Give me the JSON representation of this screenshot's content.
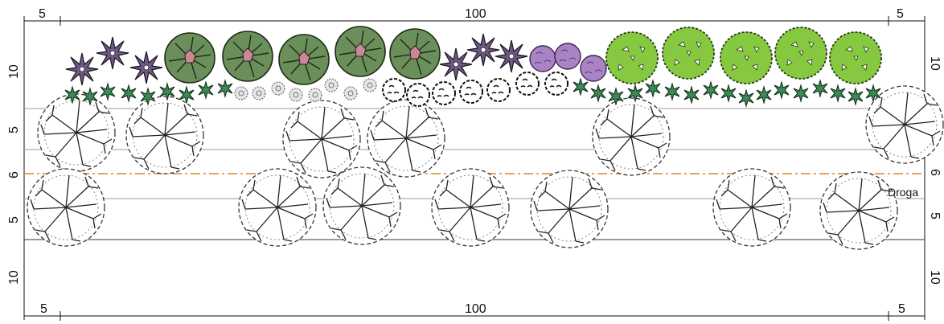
{
  "dimensions": {
    "top": {
      "left": "5",
      "center": "100",
      "right": "5"
    },
    "bottom": {
      "left": "5",
      "center": "100",
      "right": "5"
    },
    "left_side": [
      "10",
      "5",
      "6",
      "5",
      "10"
    ],
    "right_side": [
      "10",
      "5",
      "6",
      "5",
      "10"
    ]
  },
  "road_label": "Droga",
  "colors": {
    "dark_green_tree": "#6b8f5a",
    "dark_green_tree_center": "#c98a96",
    "light_green_tree": "#86c840",
    "purple_shrub": "#a983c4",
    "spiky_shrub": "#6e5a80",
    "small_shrub": "#3c8a55",
    "road_line": "#e0832f",
    "row_line": "#9a9a9a"
  },
  "icons": [
    "deciduous-tree-outline-icon",
    "conifer-crown-icon",
    "broadleaf-crown-icon",
    "spiky-shrub-icon",
    "round-shrub-icon",
    "small-shrub-icon"
  ]
}
